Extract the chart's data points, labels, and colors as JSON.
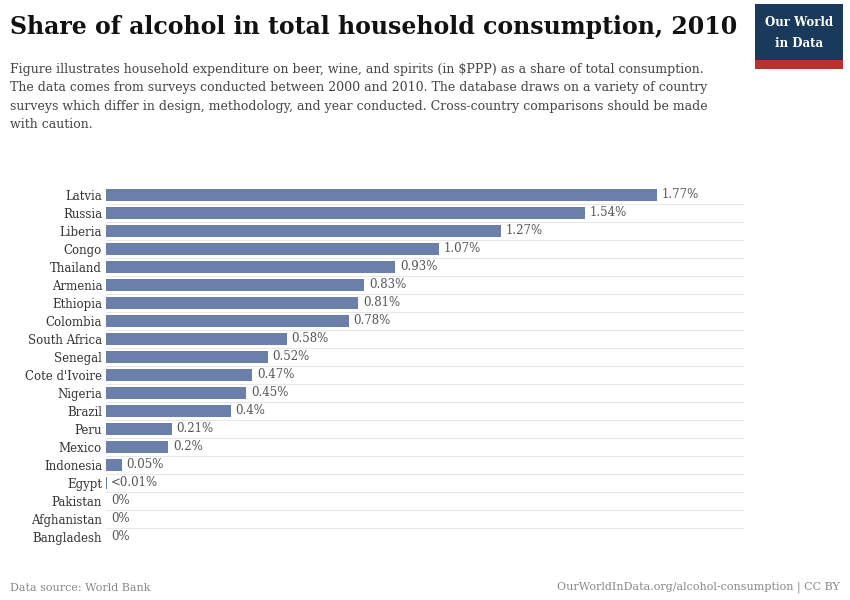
{
  "title": "Share of alcohol in total household consumption, 2010",
  "subtitle": "Figure illustrates household expenditure on beer, wine, and spirits (in $PPP) as a share of total consumption.\nThe data comes from surveys conducted between 2000 and 2010. The database draws on a variety of country\nsurveys which differ in design, methodology, and year conducted. Cross-country comparisons should be made\nwith caution.",
  "countries": [
    "Latvia",
    "Russia",
    "Liberia",
    "Congo",
    "Thailand",
    "Armenia",
    "Ethiopia",
    "Colombia",
    "South Africa",
    "Senegal",
    "Cote d'Ivoire",
    "Nigeria",
    "Brazil",
    "Peru",
    "Mexico",
    "Indonesia",
    "Egypt",
    "Pakistan",
    "Afghanistan",
    "Bangladesh"
  ],
  "values": [
    1.77,
    1.54,
    1.27,
    1.07,
    0.93,
    0.83,
    0.81,
    0.78,
    0.58,
    0.52,
    0.47,
    0.45,
    0.4,
    0.21,
    0.2,
    0.05,
    0.001,
    0.0,
    0.0,
    0.0
  ],
  "labels": [
    "1.77%",
    "1.54%",
    "1.27%",
    "1.07%",
    "0.93%",
    "0.83%",
    "0.81%",
    "0.78%",
    "0.58%",
    "0.52%",
    "0.47%",
    "0.45%",
    "0.4%",
    "0.21%",
    "0.2%",
    "0.05%",
    "<0.01%",
    "0%",
    "0%",
    "0%"
  ],
  "bar_color": "#6a7faa",
  "bg_color": "#ffffff",
  "data_source": "Data source: World Bank",
  "footer_right": "OurWorldInData.org/alcohol-consumption | CC BY",
  "owid_box_color": "#1a3a5c",
  "owid_box_red": "#b5332a",
  "title_fontsize": 17,
  "subtitle_fontsize": 9,
  "label_fontsize": 8.5,
  "bar_label_fontsize": 8.5,
  "footer_fontsize": 8
}
